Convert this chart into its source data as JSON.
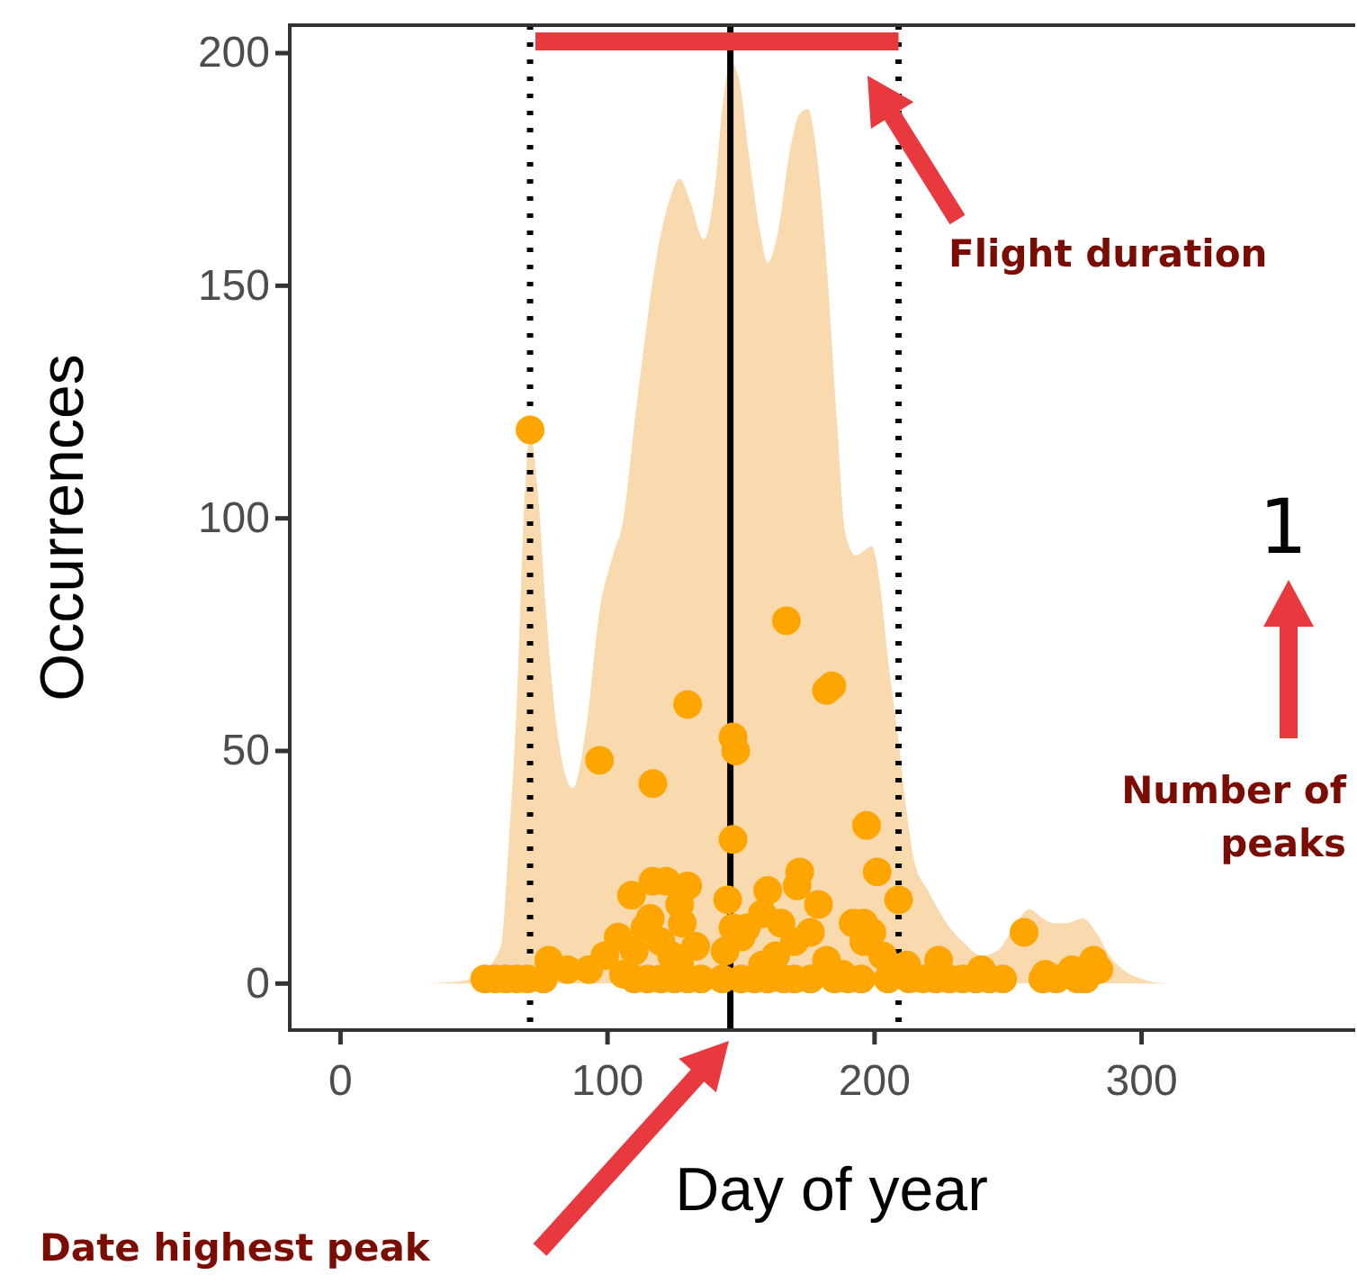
{
  "chart_data": {
    "type": "scatter",
    "xlabel": "Day of year",
    "ylabel": "Occurrences",
    "xlim": [
      -19,
      380
    ],
    "ylim": [
      -10,
      206
    ],
    "xticks": [
      0,
      100,
      200,
      300
    ],
    "yticks": [
      0,
      50,
      100,
      150,
      200
    ],
    "grid": false,
    "series": [
      {
        "type": "area",
        "color": "#f9d9ae",
        "x": [
          31,
          45,
          54,
          60,
          63,
          66,
          69,
          71,
          74,
          77,
          81,
          87,
          92,
          97,
          102,
          106,
          110,
          113,
          118,
          123,
          127,
          131,
          136,
          140,
          143,
          146,
          149,
          153,
          157,
          160,
          164,
          168,
          172,
          175,
          178,
          182,
          186,
          189,
          193,
          196,
          199,
          202,
          205,
          209,
          212,
          215,
          220,
          227,
          233,
          240,
          246,
          252,
          258,
          263,
          267,
          272,
          278,
          283,
          288,
          293,
          300,
          310
        ],
        "values": [
          0,
          0.5,
          3,
          8,
          30,
          60,
          105,
          118,
          105,
          80,
          55,
          42,
          55,
          80,
          92,
          100,
          120,
          134,
          155,
          168,
          173,
          168,
          160,
          170,
          188,
          198,
          195,
          178,
          162,
          155,
          162,
          178,
          187,
          188,
          180,
          155,
          120,
          97,
          92,
          93,
          94,
          86,
          70,
          52,
          37,
          26,
          20,
          13,
          9,
          6,
          7,
          12,
          16,
          14,
          13,
          13,
          14,
          11,
          6,
          3,
          1,
          0
        ]
      },
      {
        "marker": "circle",
        "color": "#ffa500",
        "x": [
          54,
          58,
          62,
          66,
          70,
          76,
          110,
          115,
          120,
          125,
          130,
          135,
          143,
          150,
          155,
          160,
          166,
          170,
          176,
          185,
          190,
          195,
          205,
          213,
          218,
          223,
          228,
          233,
          238,
          243,
          248,
          263,
          268,
          276,
          279,
          71,
          78,
          85,
          93,
          99,
          104,
          106,
          110,
          114,
          116,
          120,
          124,
          127,
          133,
          144,
          150,
          152,
          158,
          163,
          165,
          170,
          176,
          182,
          188,
          192,
          196,
          199,
          203,
          212,
          224,
          240,
          256,
          264,
          274,
          282,
          284,
          97,
          117,
          130,
          147,
          148,
          147,
          167,
          182,
          184,
          197,
          201,
          209,
          109,
          117,
          122,
          130,
          127,
          145,
          147,
          158,
          160,
          171,
          172,
          179,
          196,
          128
        ],
        "values": [
          1,
          1,
          1,
          1,
          1,
          1,
          1,
          1,
          1,
          1,
          1,
          1,
          1,
          1,
          1,
          1,
          1,
          1,
          1,
          1,
          1,
          1,
          1,
          1,
          1,
          1,
          1,
          1,
          1,
          1,
          1,
          1,
          1,
          1,
          1,
          119,
          5,
          3,
          3,
          6,
          10,
          2,
          7,
          12,
          14,
          9,
          6,
          4,
          8,
          7,
          10,
          12,
          4,
          6,
          13,
          9,
          11,
          5,
          2,
          13,
          9,
          11,
          6,
          4,
          5,
          3,
          11,
          2,
          3,
          5,
          3,
          48,
          43,
          60,
          53,
          50,
          31,
          78,
          63,
          64,
          34,
          24,
          18,
          19,
          22,
          22,
          21,
          17,
          18,
          12,
          15,
          20,
          21,
          24,
          17,
          13,
          13
        ]
      },
      {
        "type": "line",
        "color": "#e8393f",
        "x": [
          73,
          209
        ],
        "values": [
          202.5,
          202.5
        ]
      }
    ],
    "ref_lines": [
      {
        "axis": "x",
        "value": 71,
        "line_style": "dotted",
        "color": "#000000"
      },
      {
        "axis": "x",
        "value": 209,
        "line_style": "dotted",
        "color": "#000000"
      },
      {
        "axis": "x",
        "value": 146,
        "line_style": "solid",
        "color": "#000000"
      }
    ],
    "annotations": [
      "Flight duration",
      "1",
      "Number of peaks",
      "Date highest peak"
    ]
  }
}
